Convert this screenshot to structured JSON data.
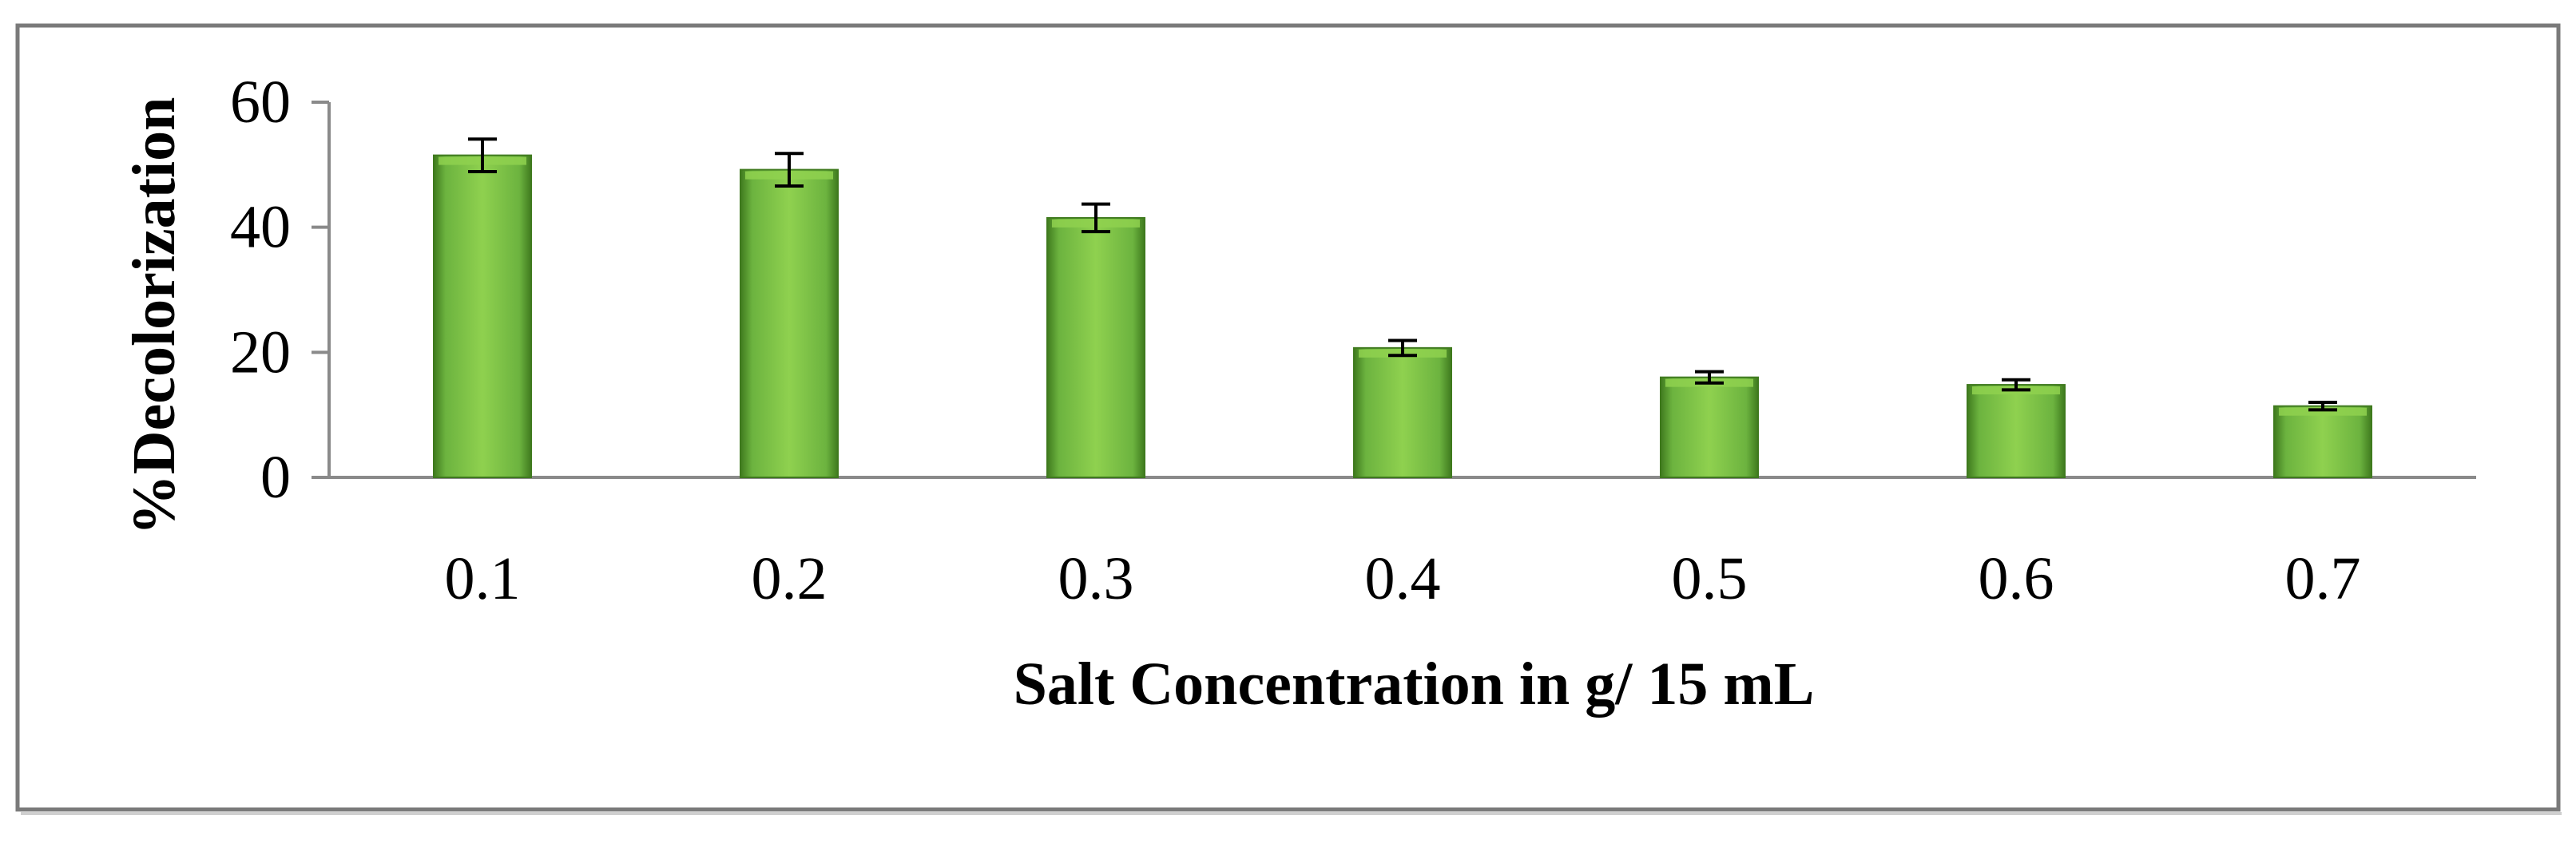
{
  "chart_data": {
    "type": "bar",
    "title": "",
    "xlabel": "Salt Concentration in g/ 15 mL",
    "ylabel": "%Decolorization",
    "categories": [
      "0.1",
      "0.2",
      "0.3",
      "0.4",
      "0.5",
      "0.6",
      "0.7"
    ],
    "values": [
      51.5,
      49.2,
      41.5,
      20.7,
      16.0,
      14.8,
      11.4
    ],
    "errors": [
      2.6,
      2.6,
      2.2,
      1.2,
      0.9,
      0.8,
      0.6
    ],
    "ylim": [
      0,
      60
    ],
    "yticks": [
      0,
      20,
      40,
      60
    ],
    "grid": false,
    "legend": "none",
    "colors": {
      "bar_light": "#8fd14f",
      "bar_mid": "#6cb33f",
      "bar_dark": "#3f7a1e",
      "error_bar": "#000000",
      "axis": "#8a8a8a",
      "frame": "#7a7a7a"
    }
  }
}
